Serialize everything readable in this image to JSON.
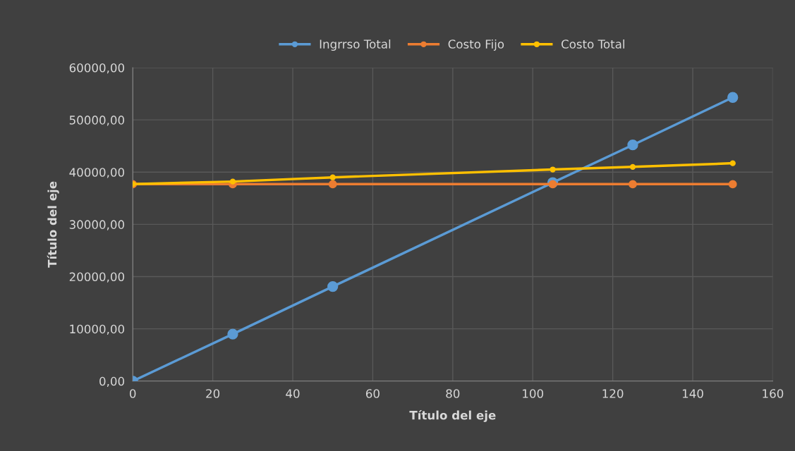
{
  "chart_data": {
    "type": "line",
    "xlabel": "Título del eje",
    "ylabel": "Título del eje",
    "x": [
      0,
      25,
      50,
      105,
      125,
      150
    ],
    "series": [
      {
        "name": "Ingrrso Total",
        "color": "#5b9bd5",
        "values": [
          0,
          9000,
          18100,
          38000,
          45200,
          54300
        ]
      },
      {
        "name": "Costo Fijo",
        "color": "#ed7d31",
        "values": [
          37700,
          37700,
          37700,
          37700,
          37700,
          37700
        ]
      },
      {
        "name": "Costo Total",
        "color": "#ffc000",
        "values": [
          37700,
          38200,
          39000,
          40500,
          41000,
          41700
        ]
      }
    ],
    "xlim": [
      0,
      160
    ],
    "xticks": [
      0,
      20,
      40,
      60,
      80,
      100,
      120,
      140,
      160
    ],
    "ylim": [
      0,
      60000
    ],
    "yticks": [
      {
        "value": 0,
        "label": "0,00"
      },
      {
        "value": 10000,
        "label": "10000,00"
      },
      {
        "value": 20000,
        "label": "20000,00"
      },
      {
        "value": 30000,
        "label": "30000,00"
      },
      {
        "value": 40000,
        "label": "40000,00"
      },
      {
        "value": 50000,
        "label": "50000,00"
      },
      {
        "value": 60000,
        "label": "60000,00"
      }
    ],
    "grid": true,
    "legend": "top",
    "marker": "circle",
    "line_style": "solid"
  }
}
